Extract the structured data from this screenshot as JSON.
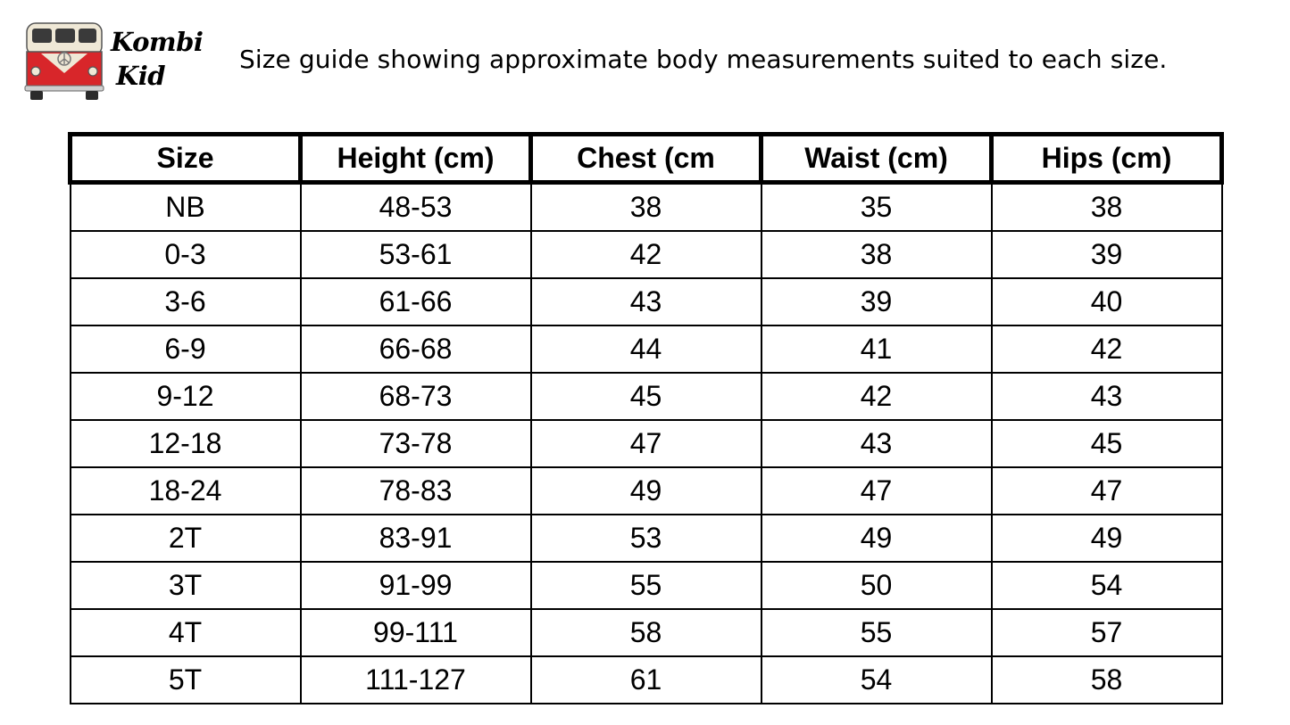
{
  "brand": {
    "line1": "Kombi",
    "line2": "Kid",
    "colors": {
      "bus_red": "#d8262a",
      "bus_cream": "#efe8d6",
      "tire": "#2b2b2b"
    }
  },
  "caption": "Size guide showing approximate body measurements suited to each size.",
  "table": {
    "headers": [
      "Size",
      "Height (cm)",
      "Chest (cm",
      "Waist (cm)",
      "Hips (cm)"
    ],
    "rows": [
      [
        "NB",
        "48-53",
        "38",
        "35",
        "38"
      ],
      [
        "0-3",
        "53-61",
        "42",
        "38",
        "39"
      ],
      [
        "3-6",
        "61-66",
        "43",
        "39",
        "40"
      ],
      [
        "6-9",
        "66-68",
        "44",
        "41",
        "42"
      ],
      [
        "9-12",
        "68-73",
        "45",
        "42",
        "43"
      ],
      [
        "12-18",
        "73-78",
        "47",
        "43",
        "45"
      ],
      [
        "18-24",
        "78-83",
        "49",
        "47",
        "47"
      ],
      [
        "2T",
        "83-91",
        "53",
        "49",
        "49"
      ],
      [
        "3T",
        "91-99",
        "55",
        "50",
        "54"
      ],
      [
        "4T",
        "99-111",
        "58",
        "55",
        "57"
      ],
      [
        "5T",
        "111-127",
        "61",
        "54",
        "58"
      ]
    ]
  }
}
